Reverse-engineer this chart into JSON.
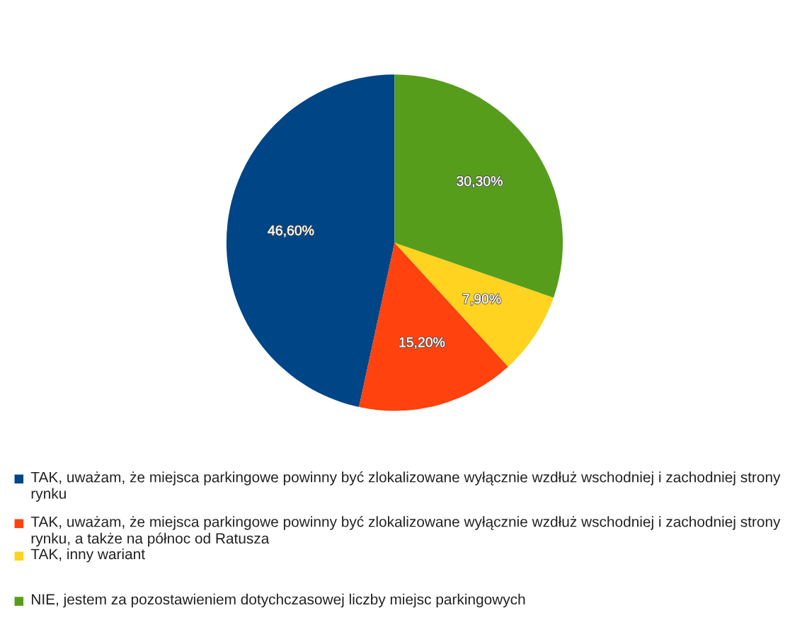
{
  "chart_data": {
    "type": "pie",
    "categories": [
      "TAK, uważam, że miejsca parkingowe powinny być zlokalizowane wyłącznie wzdłuż wschodniej i zachodniej strony rynku",
      "TAK, uważam, że miejsca parkingowe powinny być zlokalizowane wyłącznie wzdłuż wschodniej i zachodniej strony rynku, a także na północ od Ratusza",
      "TAK, inny wariant",
      "NIE, jestem za pozostawieniem dotychczasowej liczby miejsc parkingowych"
    ],
    "values": [
      46.6,
      15.2,
      7.9,
      30.3
    ],
    "value_labels": [
      "46,60%",
      "15,20%",
      "7,90%",
      "30,30%"
    ],
    "colors": [
      "#004586",
      "#ff420e",
      "#ffd320",
      "#579d1c"
    ],
    "legend": "bottom"
  }
}
